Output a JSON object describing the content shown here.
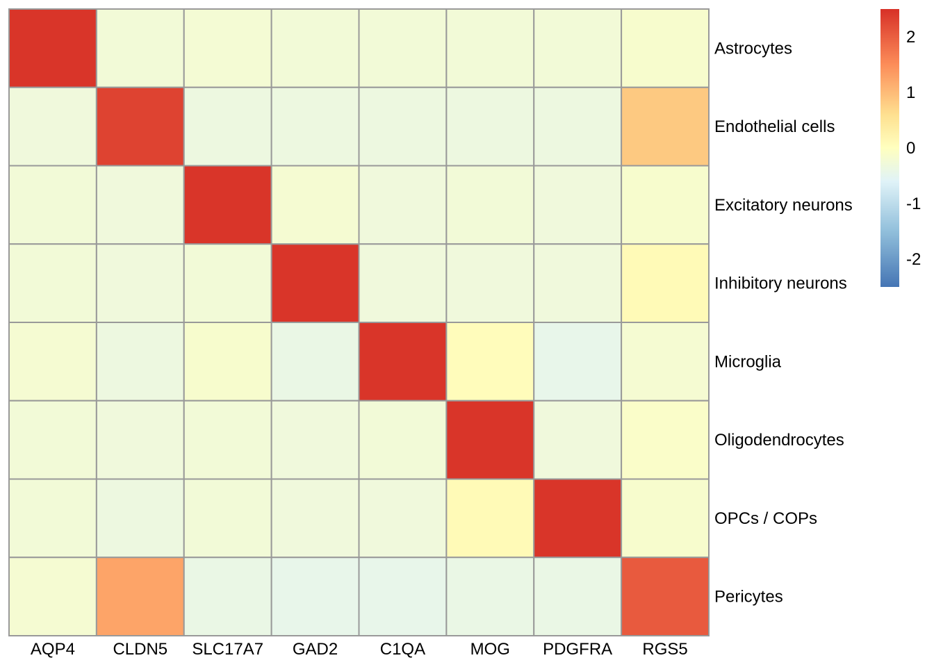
{
  "chart_data": {
    "type": "heatmap",
    "x_labels": [
      "AQP4",
      "CLDN5",
      "SLC17A7",
      "GAD2",
      "C1QA",
      "MOG",
      "PDGFRA",
      "RGS5"
    ],
    "y_labels": [
      "Astrocytes",
      "Endothelial cells",
      "Excitatory neurons",
      "Inhibitory neurons",
      "Microglia",
      "Oligodendrocytes",
      "OPCs / COPs",
      "Pericytes"
    ],
    "values": [
      [
        2.45,
        -0.25,
        -0.22,
        -0.25,
        -0.25,
        -0.25,
        -0.25,
        -0.15
      ],
      [
        -0.3,
        2.3,
        -0.35,
        -0.35,
        -0.35,
        -0.35,
        -0.35,
        0.85
      ],
      [
        -0.25,
        -0.3,
        2.45,
        -0.2,
        -0.3,
        -0.25,
        -0.3,
        -0.15
      ],
      [
        -0.25,
        -0.3,
        -0.25,
        2.45,
        -0.3,
        -0.3,
        -0.3,
        0.1
      ],
      [
        -0.2,
        -0.35,
        -0.15,
        -0.4,
        2.45,
        0.05,
        -0.45,
        -0.2
      ],
      [
        -0.25,
        -0.3,
        -0.25,
        -0.3,
        -0.25,
        2.45,
        -0.3,
        -0.1
      ],
      [
        -0.25,
        -0.35,
        -0.25,
        -0.3,
        -0.3,
        0.1,
        2.45,
        -0.15
      ],
      [
        -0.2,
        1.25,
        -0.4,
        -0.45,
        -0.45,
        -0.4,
        -0.4,
        2.05
      ]
    ],
    "color_scale": {
      "min": -2.5,
      "max": 2.5,
      "stops": [
        {
          "value": -2.5,
          "color": "#4575b4"
        },
        {
          "value": -1.5,
          "color": "#91bfdb"
        },
        {
          "value": -0.6,
          "color": "#e0f3f8"
        },
        {
          "value": 0,
          "color": "#ffffbf"
        },
        {
          "value": 0.6,
          "color": "#fee090"
        },
        {
          "value": 1.5,
          "color": "#fc8d59"
        },
        {
          "value": 2.5,
          "color": "#d73027"
        }
      ],
      "ticks": [
        2,
        1,
        0,
        -1,
        -2
      ]
    },
    "cell_border_color": "#999999",
    "legend_placement": "top-right"
  }
}
